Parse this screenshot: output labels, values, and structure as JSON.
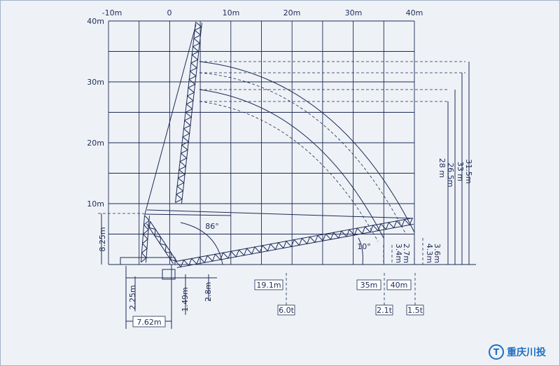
{
  "axes": {
    "x_labels": [
      "-10m",
      "0",
      "10m",
      "20m",
      "30m",
      "40m"
    ],
    "y_labels": [
      "40m",
      "30m",
      "20m",
      "10m"
    ]
  },
  "dimensions": {
    "counter_height": "8.25m",
    "base_offset": "2.25m",
    "pivot_height": "1.49m",
    "pivot_offset": "2.8m",
    "tail_radius": "7.62m",
    "max_angle": "86°",
    "min_angle": "10°",
    "heights": [
      "28 m",
      "26.5m",
      "33 m",
      "31.5m"
    ],
    "tip_heights": [
      "3.4m",
      "2.7m",
      "4.3m",
      "3.6m"
    ]
  },
  "loads": [
    {
      "radius": "19.1m",
      "load": "6.0t"
    },
    {
      "radius": "35m",
      "load": "2.1t"
    },
    {
      "radius": "40m",
      "load": "1.5t"
    }
  ],
  "logo": "重庆川投"
}
